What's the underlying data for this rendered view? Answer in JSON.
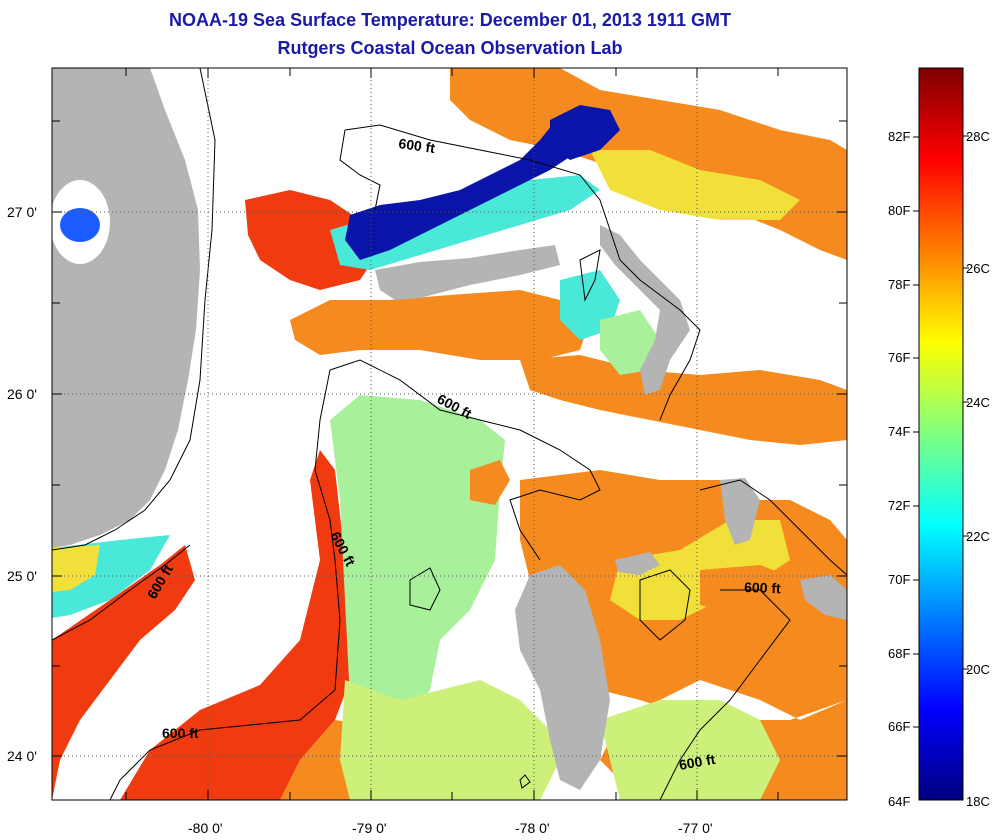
{
  "title": "NOAA-19 Sea Surface Temperature:  December 01, 2013 1911 GMT",
  "subtitle": "Rutgers Coastal Ocean Observation Lab",
  "lon_ticks": [
    "-80 0'",
    "-79 0'",
    "-78 0'",
    "-77 0'"
  ],
  "lat_ticks": [
    "27 0'",
    "26 0'",
    "25 0'",
    "24 0'"
  ],
  "contour_labels": [
    "600 ft",
    "600 ft",
    "600 ft",
    "600 ft",
    "600 ft",
    "600 ft"
  ],
  "colorbar": {
    "f_labels": [
      "82F",
      "80F",
      "78F",
      "76F",
      "74F",
      "72F",
      "70F",
      "68F",
      "66F",
      "64F"
    ],
    "c_labels": [
      "28C",
      "26C",
      "24C",
      "22C",
      "20C",
      "18C"
    ],
    "colors": [
      "#00007f",
      "#0000ff",
      "#007fff",
      "#00ffff",
      "#7fff7f",
      "#ffff00",
      "#ff7f00",
      "#ff0000",
      "#7f0000"
    ]
  },
  "palette": {
    "land": "#b4b4b4",
    "warm_red": "#f03a10",
    "orange": "#f58a1e",
    "yellow": "#f2e03a",
    "yellow_green": "#cdf07a",
    "green": "#a8f09a",
    "cyan": "#4ae8d8",
    "blue": "#0a14a8"
  }
}
